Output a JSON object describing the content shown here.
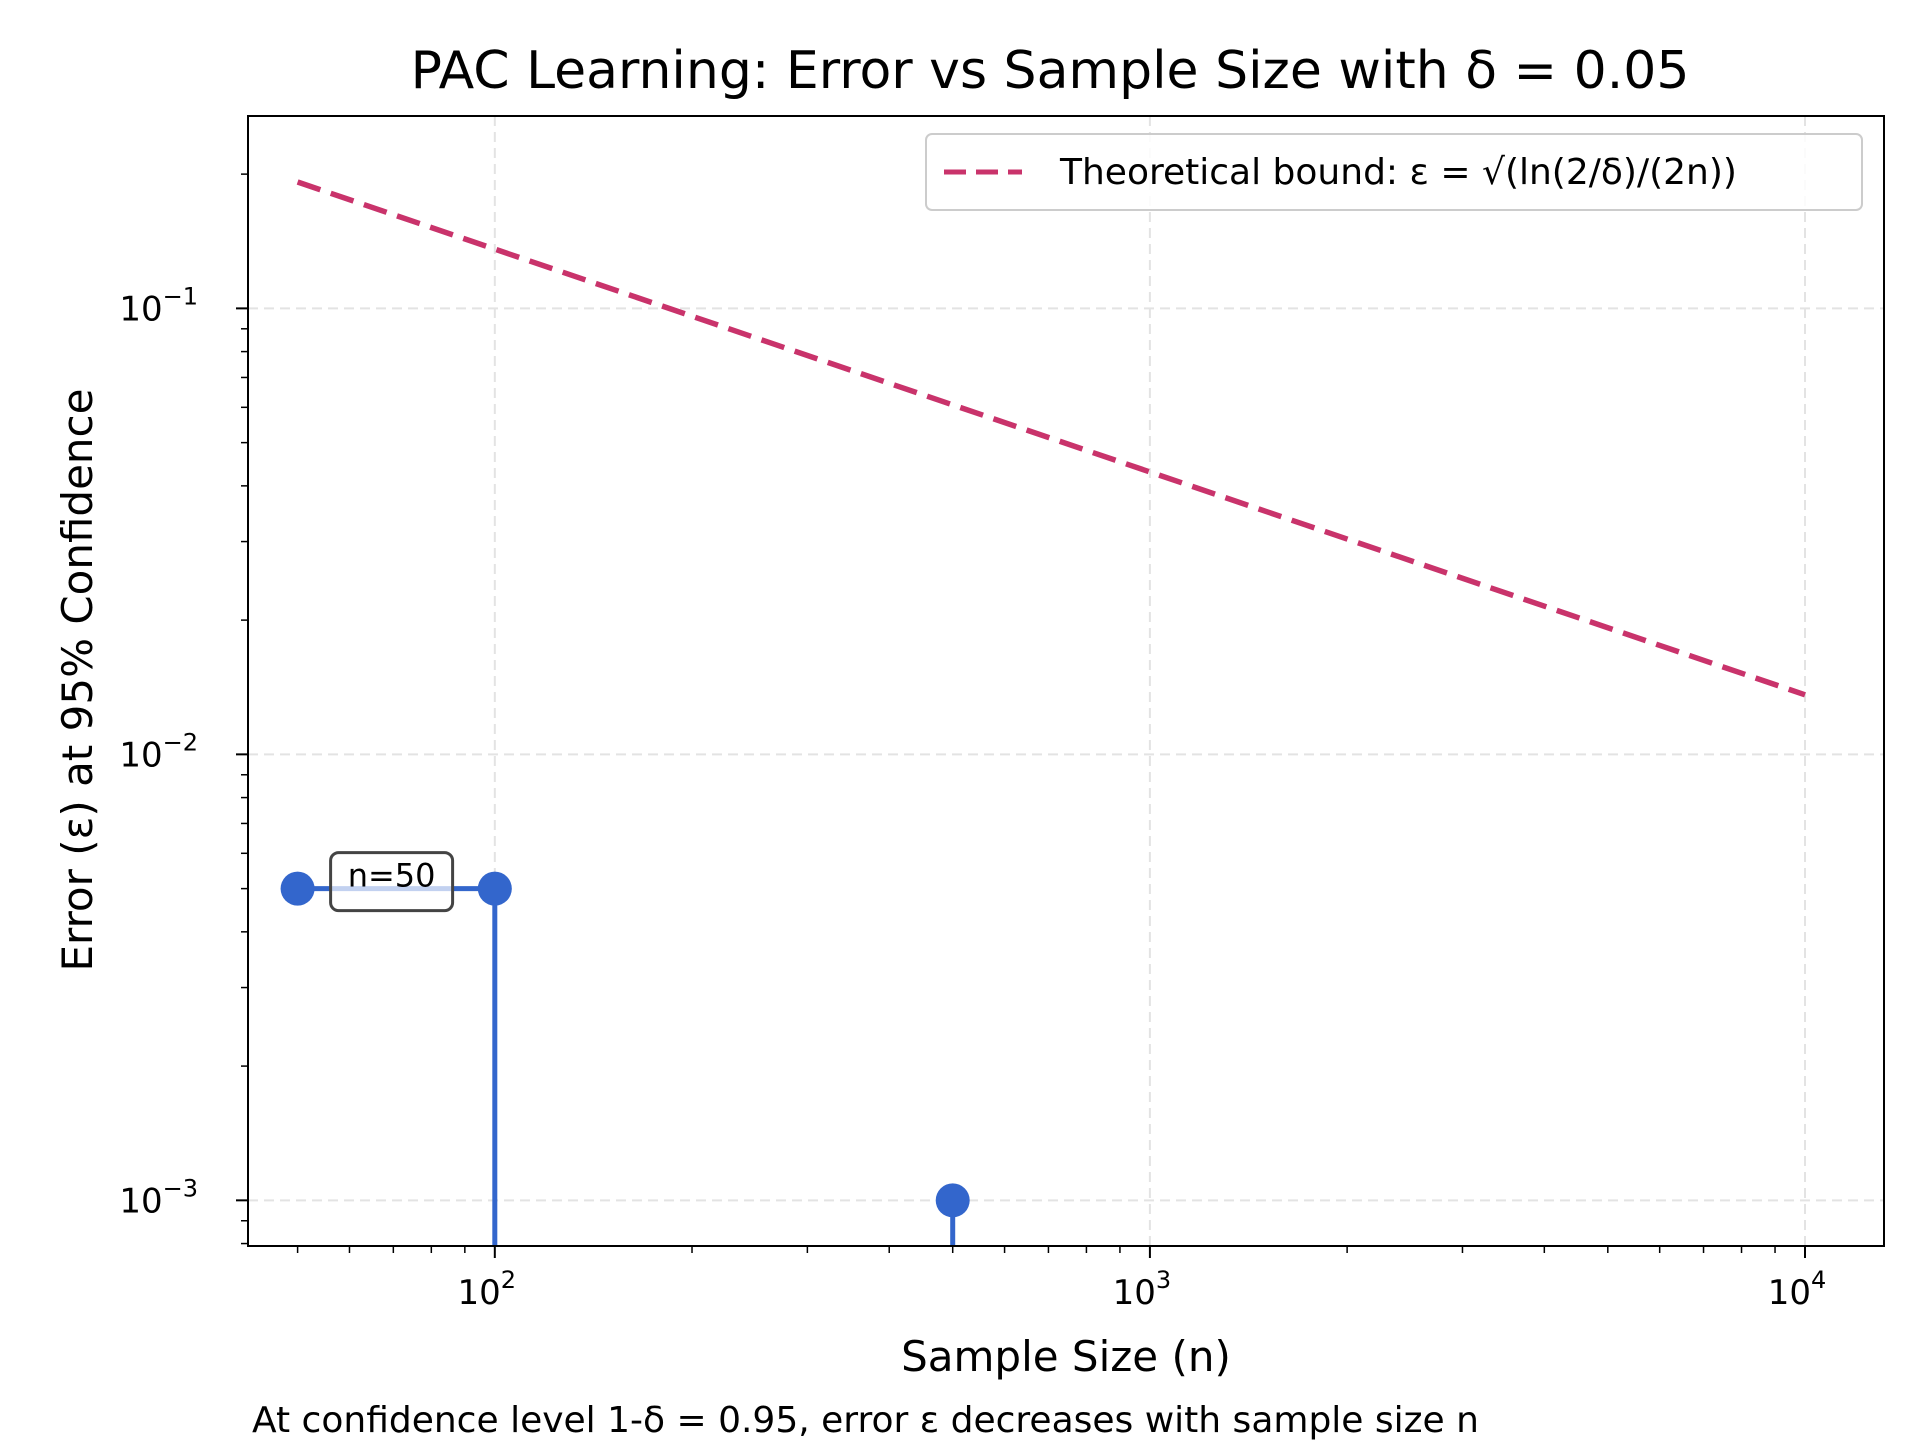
{
  "chart_data": {
    "type": "line",
    "title": "PAC Learning: Error vs Sample Size with δ = 0.05",
    "xlabel": "Sample Size (n)",
    "ylabel": "Error (ε) at 95% Confidence",
    "caption": "At confidence level 1-δ = 0.95, error ε decreases with sample size n",
    "xscale": "log",
    "yscale": "log",
    "xlim": [
      42,
      13200
    ],
    "ylim": [
      0.00079,
      0.27
    ],
    "x_ticks": [
      {
        "value": 100,
        "base": "10",
        "exp": "2"
      },
      {
        "value": 1000,
        "base": "10",
        "exp": "3"
      },
      {
        "value": 10000,
        "base": "10",
        "exp": "4"
      }
    ],
    "y_ticks": [
      {
        "value": 0.001,
        "base": "10",
        "exp": "−3"
      },
      {
        "value": 0.01,
        "base": "10",
        "exp": "−2"
      },
      {
        "value": 0.1,
        "base": "10",
        "exp": "−1"
      }
    ],
    "grid": true,
    "legend_position": "top-right",
    "series": [
      {
        "name": "Theoretical bound: ε = √(ln(2/δ)/(2n))",
        "style": "dashed",
        "color": "#c9336b",
        "x": [
          50,
          10000
        ],
        "y": [
          0.192,
          0.0136
        ]
      },
      {
        "style": "markers",
        "color": "#3366cc",
        "x": [
          50,
          100,
          500
        ],
        "y": [
          0.005,
          0.005,
          0.001
        ]
      }
    ],
    "annotations": [
      {
        "text": "n=50",
        "x": 50,
        "y": 0.005
      }
    ]
  }
}
